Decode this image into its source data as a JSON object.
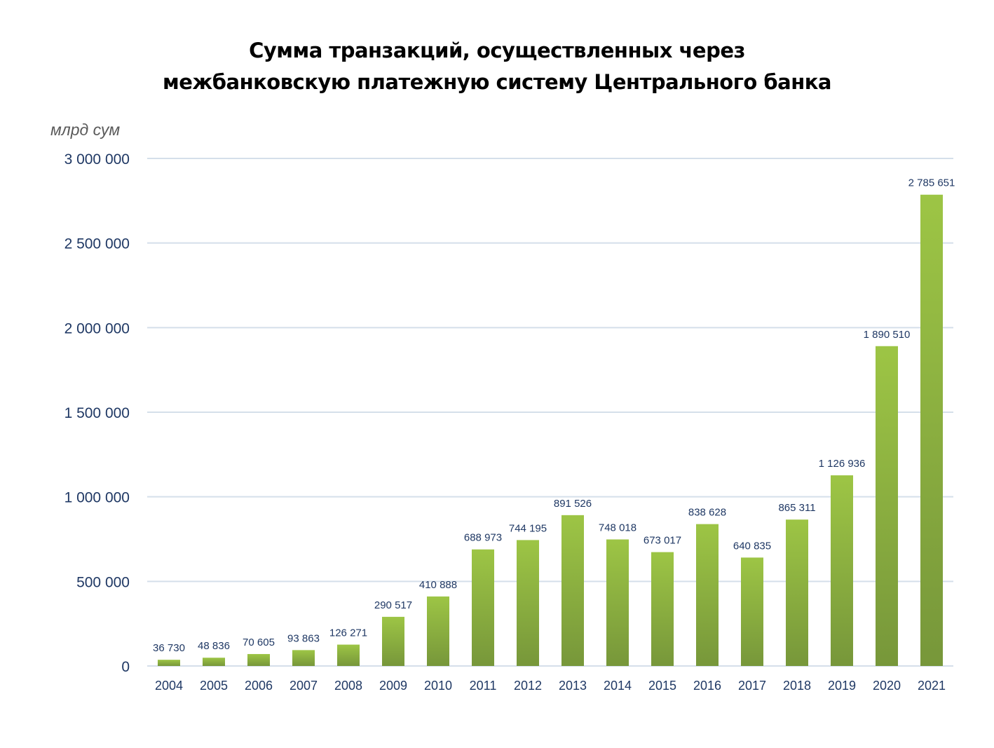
{
  "chart_data": {
    "type": "bar",
    "title_lines": [
      "Сумма транзакций, осуществленных через",
      "межбанковскую платежную систему Центрального банка"
    ],
    "ylabel": "млрд сум",
    "xlabel": "",
    "ylim": [
      0,
      3000000
    ],
    "yticks": [
      0,
      500000,
      1000000,
      1500000,
      2000000,
      2500000,
      3000000
    ],
    "ytick_labels": [
      "0",
      "500 000",
      "1 000 000",
      "1 500 000",
      "2 000 000",
      "2 500 000",
      "3 000 000"
    ],
    "grid": true,
    "categories": [
      "2004",
      "2005",
      "2006",
      "2007",
      "2008",
      "2009",
      "2010",
      "2011",
      "2012",
      "2013",
      "2014",
      "2015",
      "2016",
      "2017",
      "2018",
      "2019",
      "2020",
      "2021"
    ],
    "values": [
      36730,
      48836,
      70605,
      93863,
      126271,
      290517,
      410888,
      688973,
      744195,
      891526,
      748018,
      673017,
      838628,
      640835,
      865311,
      1126936,
      1890510,
      2785651
    ],
    "data_labels": [
      "36 730",
      "48 836",
      "70 605",
      "93 863",
      "126 271",
      "290 517",
      "410 888",
      "688 973",
      "744 195",
      "891 526",
      "748 018",
      "673 017",
      "838 628",
      "640 835",
      "865 311",
      "1 126 936",
      "1 890 510",
      "2 785 651"
    ],
    "colors": {
      "bar_top": "#9dc545",
      "bar_bottom": "#77973a",
      "grid": "#d5dfea",
      "text": "#1f3864"
    }
  }
}
